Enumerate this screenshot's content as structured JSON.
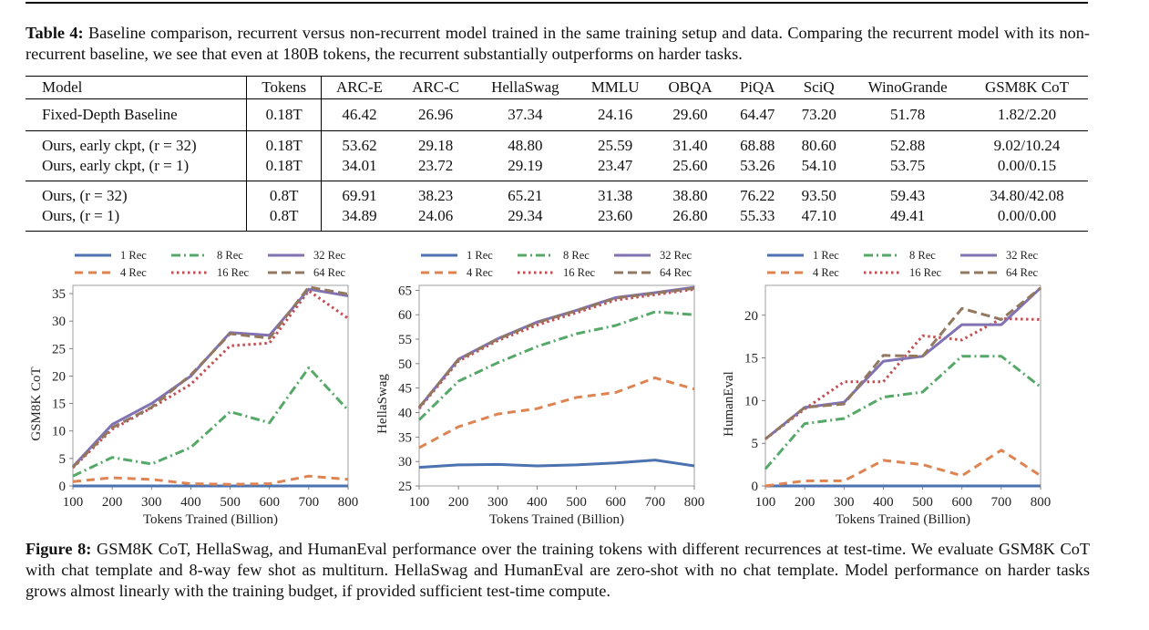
{
  "table": {
    "caption_label": "Table 4:",
    "caption_text": " Baseline comparison, recurrent versus non-recurrent model trained in the same training setup and data. Comparing the recurrent model with its non-recurrent baseline, we see that even at 180B tokens, the recurrent substantially outperforms on harder tasks.",
    "headers": [
      "Model",
      "Tokens",
      "ARC-E",
      "ARC-C",
      "HellaSwag",
      "MMLU",
      "OBQA",
      "PiQA",
      "SciQ",
      "WinoGrande",
      "GSM8K CoT"
    ],
    "rows": [
      [
        "Fixed-Depth Baseline",
        "0.18T",
        "46.42",
        "26.96",
        "37.34",
        "24.16",
        "29.60",
        "64.47",
        "73.20",
        "51.78",
        "1.82/2.20"
      ],
      [
        "Ours, early ckpt, (r = 32)",
        "0.18T",
        "53.62",
        "29.18",
        "48.80",
        "25.59",
        "31.40",
        "68.88",
        "80.60",
        "52.88",
        "9.02/10.24"
      ],
      [
        "Ours, early ckpt, (r = 1)",
        "0.18T",
        "34.01",
        "23.72",
        "29.19",
        "23.47",
        "25.60",
        "53.26",
        "54.10",
        "53.75",
        "0.00/0.15"
      ],
      [
        "Ours, (r = 32)",
        "0.8T",
        "69.91",
        "38.23",
        "65.21",
        "31.38",
        "38.80",
        "76.22",
        "93.50",
        "59.43",
        "34.80/42.08"
      ],
      [
        "Ours, (r = 1)",
        "0.8T",
        "34.89",
        "24.06",
        "29.34",
        "23.60",
        "26.80",
        "55.33",
        "47.10",
        "49.41",
        "0.00/0.00"
      ]
    ]
  },
  "figure": {
    "caption_label": "Figure 8:",
    "caption_text": " GSM8K CoT, HellaSwag, and HumanEval performance over the training tokens with different recurrences at test-time. We evaluate GSM8K CoT with chat template and 8-way few shot as multiturn. HellaSwag and HumanEval are zero-shot with no chat template. Model performance on harder tasks grows almost linearly with the training budget, if provided sufficient test-time compute."
  },
  "colors": {
    "1 Rec": "#4C72B0",
    "4 Rec": "#DD8452",
    "8 Rec": "#55A868",
    "16 Rec": "#C44E52",
    "32 Rec": "#8172B3",
    "64 Rec": "#937860"
  },
  "chart_data": [
    {
      "type": "line",
      "title": "",
      "xlabel": "Tokens Trained (Billion)",
      "ylabel": "GSM8K CoT",
      "x": [
        100,
        200,
        300,
        400,
        500,
        600,
        700,
        800
      ],
      "xticks": [
        "100",
        "200",
        "300",
        "400",
        "500",
        "600",
        "700",
        "800"
      ],
      "yticks": [
        0,
        5,
        10,
        15,
        20,
        25,
        30,
        35
      ],
      "ylim": [
        0,
        36.5
      ],
      "legend": "top",
      "series": [
        {
          "name": "1 Rec",
          "values": [
            0,
            0,
            0,
            0,
            0,
            0,
            0,
            0
          ]
        },
        {
          "name": "4 Rec",
          "values": [
            0.8,
            1.5,
            1.2,
            0.4,
            0.3,
            0.4,
            1.8,
            1.2
          ]
        },
        {
          "name": "8 Rec",
          "values": [
            1.8,
            5.2,
            4.0,
            7.0,
            13.5,
            11.5,
            21.5,
            13.8
          ]
        },
        {
          "name": "16 Rec",
          "values": [
            3.3,
            10.3,
            14.2,
            18.5,
            25.5,
            26.0,
            35.5,
            30.5
          ]
        },
        {
          "name": "32 Rec",
          "values": [
            3.5,
            11.2,
            15.0,
            20.0,
            27.9,
            27.4,
            35.8,
            34.6
          ]
        },
        {
          "name": "64 Rec",
          "values": [
            3.4,
            10.6,
            14.3,
            20.2,
            27.7,
            26.9,
            36.2,
            34.9
          ]
        }
      ]
    },
    {
      "type": "line",
      "title": "",
      "xlabel": "Tokens Trained (Billion)",
      "ylabel": "HellaSwag",
      "x": [
        100,
        200,
        300,
        400,
        500,
        600,
        700,
        800
      ],
      "xticks": [
        "100",
        "200",
        "300",
        "400",
        "500",
        "600",
        "700",
        "800"
      ],
      "yticks": [
        25,
        30,
        35,
        40,
        45,
        50,
        55,
        60,
        65
      ],
      "ylim": [
        25,
        66
      ],
      "legend": "top",
      "series": [
        {
          "name": "1 Rec",
          "values": [
            28.8,
            29.3,
            29.4,
            29.1,
            29.3,
            29.7,
            30.3,
            29.1
          ]
        },
        {
          "name": "4 Rec",
          "values": [
            32.8,
            37.1,
            39.7,
            40.8,
            43.1,
            44.1,
            47.1,
            44.8
          ]
        },
        {
          "name": "8 Rec",
          "values": [
            38.5,
            46.4,
            50.2,
            53.5,
            56.1,
            57.8,
            60.6,
            60.0
          ]
        },
        {
          "name": "16 Rec",
          "values": [
            40.8,
            50.5,
            54.7,
            57.9,
            60.4,
            63.0,
            64.1,
            65.2
          ]
        },
        {
          "name": "32 Rec",
          "values": [
            41.0,
            50.9,
            55.1,
            58.5,
            60.9,
            63.5,
            64.5,
            65.6
          ]
        },
        {
          "name": "64 Rec",
          "values": [
            41.1,
            50.8,
            55.0,
            58.4,
            60.8,
            63.4,
            64.4,
            65.4
          ]
        }
      ]
    },
    {
      "type": "line",
      "title": "",
      "xlabel": "Tokens Trained (Billion)",
      "ylabel": "HumanEval",
      "x": [
        100,
        200,
        300,
        400,
        500,
        600,
        700,
        800
      ],
      "xticks": [
        "100",
        "200",
        "300",
        "400",
        "500",
        "600",
        "700",
        "800"
      ],
      "yticks": [
        0,
        5,
        10,
        15,
        20
      ],
      "ylim": [
        0,
        23.5
      ],
      "legend": "top",
      "series": [
        {
          "name": "1 Rec",
          "values": [
            0,
            0,
            0,
            0,
            0,
            0,
            0,
            0
          ]
        },
        {
          "name": "4 Rec",
          "values": [
            0,
            0.6,
            0.6,
            3.0,
            2.5,
            1.2,
            4.2,
            1.2
          ]
        },
        {
          "name": "8 Rec",
          "values": [
            2.0,
            7.3,
            7.9,
            10.4,
            11.0,
            15.2,
            15.2,
            11.6
          ]
        },
        {
          "name": "16 Rec",
          "values": [
            5.5,
            9.0,
            12.2,
            12.2,
            17.6,
            17.1,
            19.6,
            19.5
          ]
        },
        {
          "name": "32 Rec",
          "values": [
            5.5,
            9.2,
            9.8,
            14.6,
            15.2,
            18.9,
            18.9,
            23.2
          ]
        },
        {
          "name": "64 Rec",
          "values": [
            5.5,
            9.2,
            9.6,
            15.3,
            15.2,
            20.8,
            19.5,
            23.2
          ]
        }
      ]
    }
  ]
}
